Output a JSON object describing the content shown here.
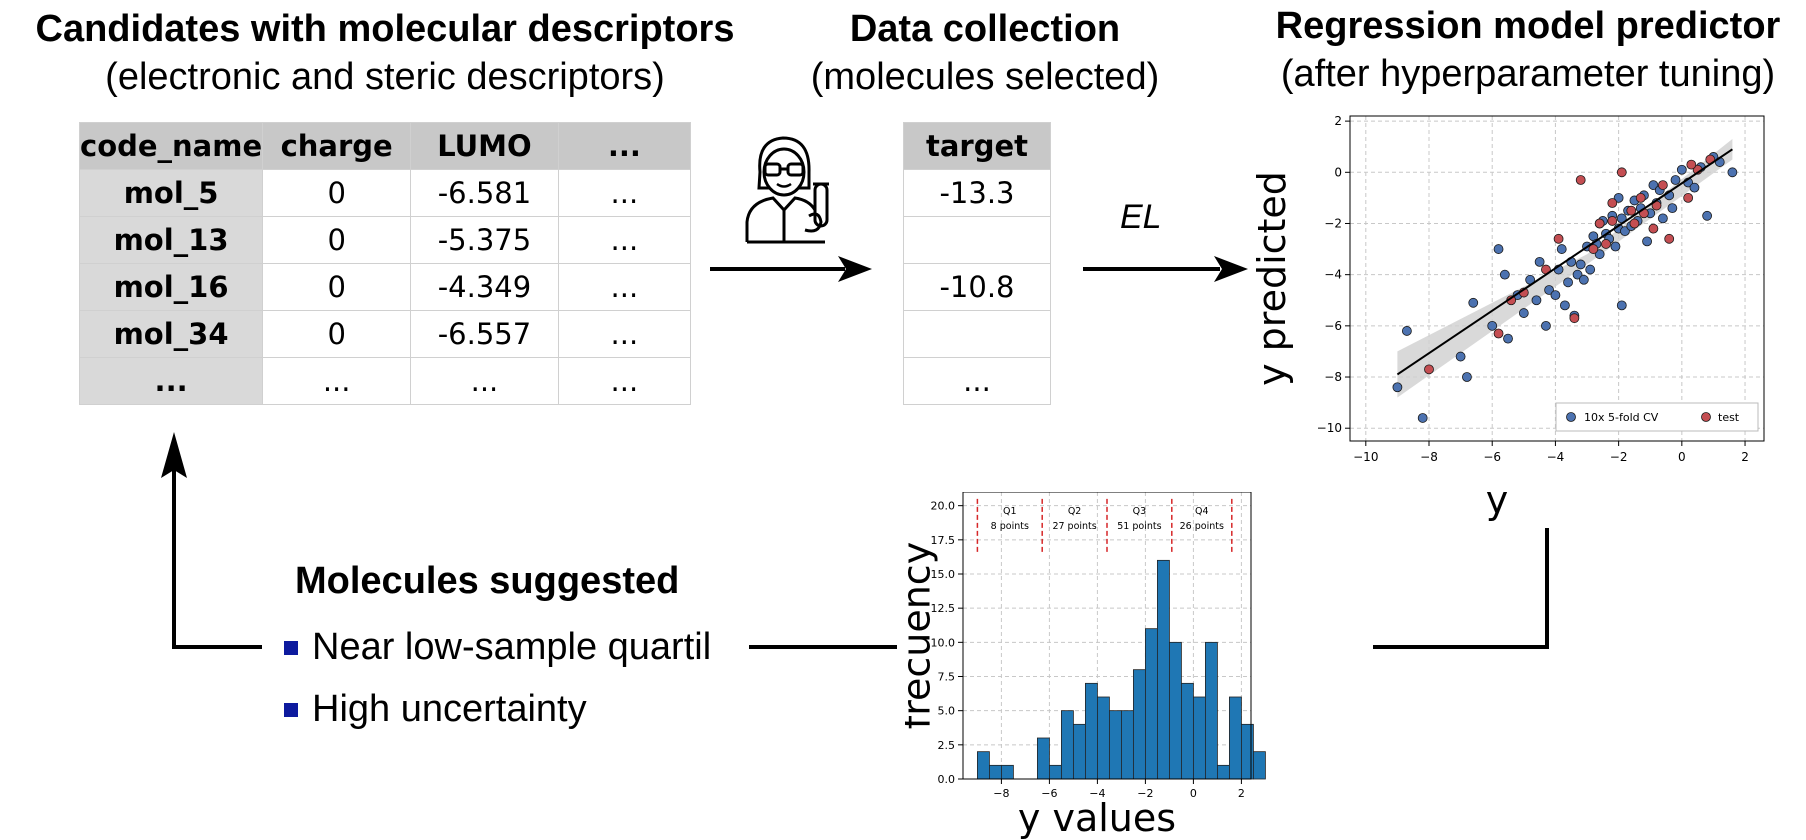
{
  "descriptors": {
    "title": "Candidates with molecular descriptors",
    "subtitle": "(electronic and steric descriptors)",
    "columns": [
      "code_name",
      "charge",
      "LUMO",
      "..."
    ],
    "rows": [
      [
        "mol_5",
        "0",
        "-6.581",
        "..."
      ],
      [
        "mol_13",
        "0",
        "-5.375",
        "..."
      ],
      [
        "mol_16",
        "0",
        "-4.349",
        "..."
      ],
      [
        "mol_34",
        "0",
        "-6.557",
        "..."
      ],
      [
        "...",
        "...",
        "...",
        "..."
      ]
    ]
  },
  "collection": {
    "title": "Data collection",
    "subtitle": "(molecules selected)",
    "column": "target",
    "rows": [
      "-13.3",
      "",
      "-10.8",
      "",
      "..."
    ]
  },
  "arrow_label": "EL",
  "regression": {
    "title": "Regression model predictor",
    "subtitle": "(after hyperparameter tuning)"
  },
  "suggested": {
    "title": "Molecules suggested",
    "items": [
      "Near low-sample quartil",
      "High uncertainty"
    ],
    "bullet_color": "#0d1a9e"
  },
  "chart_data": [
    {
      "type": "scatter",
      "xlabel": "y",
      "ylabel": "y predicted",
      "xlim": [
        -10.5,
        2.6
      ],
      "ylim": [
        -10.5,
        2.2
      ],
      "xticks": [
        -10,
        -8,
        -6,
        -4,
        -2,
        0,
        2
      ],
      "yticks": [
        -10,
        -8,
        -6,
        -4,
        -2,
        0,
        2
      ],
      "grid": true,
      "legend_position": "bottom-right",
      "fit_line": {
        "x": [
          -9.0,
          1.6
        ],
        "y": [
          -7.9,
          0.9
        ]
      },
      "series": [
        {
          "name": "10x 5-fold CV",
          "color": "#4c72b0",
          "points": [
            [
              -9.0,
              -8.4
            ],
            [
              -8.7,
              -6.2
            ],
            [
              -8.2,
              -9.6
            ],
            [
              -7.0,
              -7.2
            ],
            [
              -6.8,
              -8.0
            ],
            [
              -6.6,
              -5.1
            ],
            [
              -6.0,
              -6.0
            ],
            [
              -5.8,
              -3.0
            ],
            [
              -5.5,
              -6.5
            ],
            [
              -5.2,
              -4.8
            ],
            [
              -5.0,
              -5.5
            ],
            [
              -4.8,
              -4.2
            ],
            [
              -4.6,
              -5.0
            ],
            [
              -4.5,
              -3.5
            ],
            [
              -4.3,
              -6.0
            ],
            [
              -4.2,
              -4.6
            ],
            [
              -4.0,
              -4.8
            ],
            [
              -3.9,
              -3.8
            ],
            [
              -3.7,
              -5.2
            ],
            [
              -3.6,
              -4.3
            ],
            [
              -3.5,
              -3.5
            ],
            [
              -3.4,
              -5.6
            ],
            [
              -3.3,
              -4.0
            ],
            [
              -3.2,
              -3.6
            ],
            [
              -3.1,
              -4.2
            ],
            [
              -3.0,
              -2.9
            ],
            [
              -2.9,
              -3.8
            ],
            [
              -2.8,
              -2.5
            ],
            [
              -2.7,
              -2.8
            ],
            [
              -2.6,
              -3.2
            ],
            [
              -2.5,
              -1.9
            ],
            [
              -2.4,
              -2.4
            ],
            [
              -2.3,
              -2.6
            ],
            [
              -2.2,
              -1.7
            ],
            [
              -2.1,
              -2.9
            ],
            [
              -2.0,
              -2.2
            ],
            [
              -1.9,
              -1.8
            ],
            [
              -1.8,
              -2.3
            ],
            [
              -1.7,
              -1.5
            ],
            [
              -1.6,
              -2.1
            ],
            [
              -1.5,
              -1.1
            ],
            [
              -1.4,
              -1.9
            ],
            [
              -1.3,
              -1.4
            ],
            [
              -1.2,
              -0.9
            ],
            [
              -1.1,
              -2.7
            ],
            [
              -1.0,
              -1.6
            ],
            [
              -0.9,
              -0.5
            ],
            [
              -0.8,
              -1.2
            ],
            [
              -0.7,
              -0.7
            ],
            [
              -0.6,
              -1.8
            ],
            [
              -0.4,
              -0.9
            ],
            [
              -0.3,
              -1.4
            ],
            [
              -0.2,
              -0.3
            ],
            [
              0.0,
              0.1
            ],
            [
              0.2,
              -0.4
            ],
            [
              0.4,
              -0.6
            ],
            [
              0.6,
              0.2
            ],
            [
              0.8,
              -1.7
            ],
            [
              1.0,
              0.6
            ],
            [
              1.2,
              0.4
            ],
            [
              1.6,
              0.0
            ],
            [
              -1.9,
              -5.2
            ],
            [
              -2.6,
              -2.0
            ],
            [
              -3.8,
              -3.0
            ],
            [
              -5.6,
              -4.0
            ],
            [
              -2.0,
              -1.0
            ]
          ]
        },
        {
          "name": "test",
          "color": "#c44e52",
          "points": [
            [
              -8.0,
              -7.7
            ],
            [
              -5.8,
              -6.3
            ],
            [
              -5.4,
              -5.0
            ],
            [
              -5.0,
              -4.7
            ],
            [
              -4.3,
              -3.8
            ],
            [
              -3.4,
              -5.7
            ],
            [
              -3.2,
              -0.3
            ],
            [
              -2.8,
              -3.0
            ],
            [
              -2.6,
              -2.0
            ],
            [
              -2.4,
              -2.8
            ],
            [
              -2.2,
              -1.9
            ],
            [
              -1.6,
              -1.5
            ],
            [
              -1.3,
              -1.0
            ],
            [
              -0.9,
              -2.2
            ],
            [
              -0.6,
              -0.5
            ],
            [
              -0.4,
              -2.6
            ],
            [
              0.2,
              -1.0
            ],
            [
              0.5,
              0.1
            ],
            [
              -1.9,
              0.0
            ],
            [
              -0.8,
              -1.3
            ],
            [
              -1.2,
              -1.6
            ],
            [
              0.9,
              0.5
            ],
            [
              -2.2,
              -1.2
            ],
            [
              -3.9,
              -2.6
            ],
            [
              -1.5,
              -2.0
            ],
            [
              0.3,
              0.3
            ]
          ]
        }
      ]
    },
    {
      "type": "bar",
      "xlabel": "y values",
      "ylabel": "frecuency",
      "xlim": [
        -9.6,
        2.4
      ],
      "ylim": [
        0,
        21
      ],
      "xticks": [
        -8,
        -6,
        -4,
        -2,
        0,
        2
      ],
      "yticks": [
        0.0,
        2.5,
        5.0,
        7.5,
        10.0,
        12.5,
        15.0,
        17.5,
        20.0
      ],
      "ytick_labels": [
        "0.0",
        "2.5",
        "5.0",
        "7.5",
        "10.0",
        "12.5",
        "15.0",
        "17.5",
        "20.0"
      ],
      "grid": true,
      "bar_color": "#1f77b4",
      "bin_width": 0.5,
      "bin_start": -9.0,
      "values": [
        2,
        1,
        1,
        0,
        0,
        3,
        1,
        5,
        4,
        7,
        6,
        5,
        5,
        8,
        11,
        16,
        10,
        7,
        6,
        10,
        1,
        6,
        4,
        2
      ],
      "quartile_lines": [
        -9.0,
        -6.3,
        -3.6,
        -0.9,
        1.6
      ],
      "quartiles": [
        {
          "label": "Q1",
          "sub": "8 points"
        },
        {
          "label": "Q2",
          "sub": "27 points"
        },
        {
          "label": "Q3",
          "sub": "51 points"
        },
        {
          "label": "Q4",
          "sub": "26 points"
        }
      ]
    }
  ]
}
